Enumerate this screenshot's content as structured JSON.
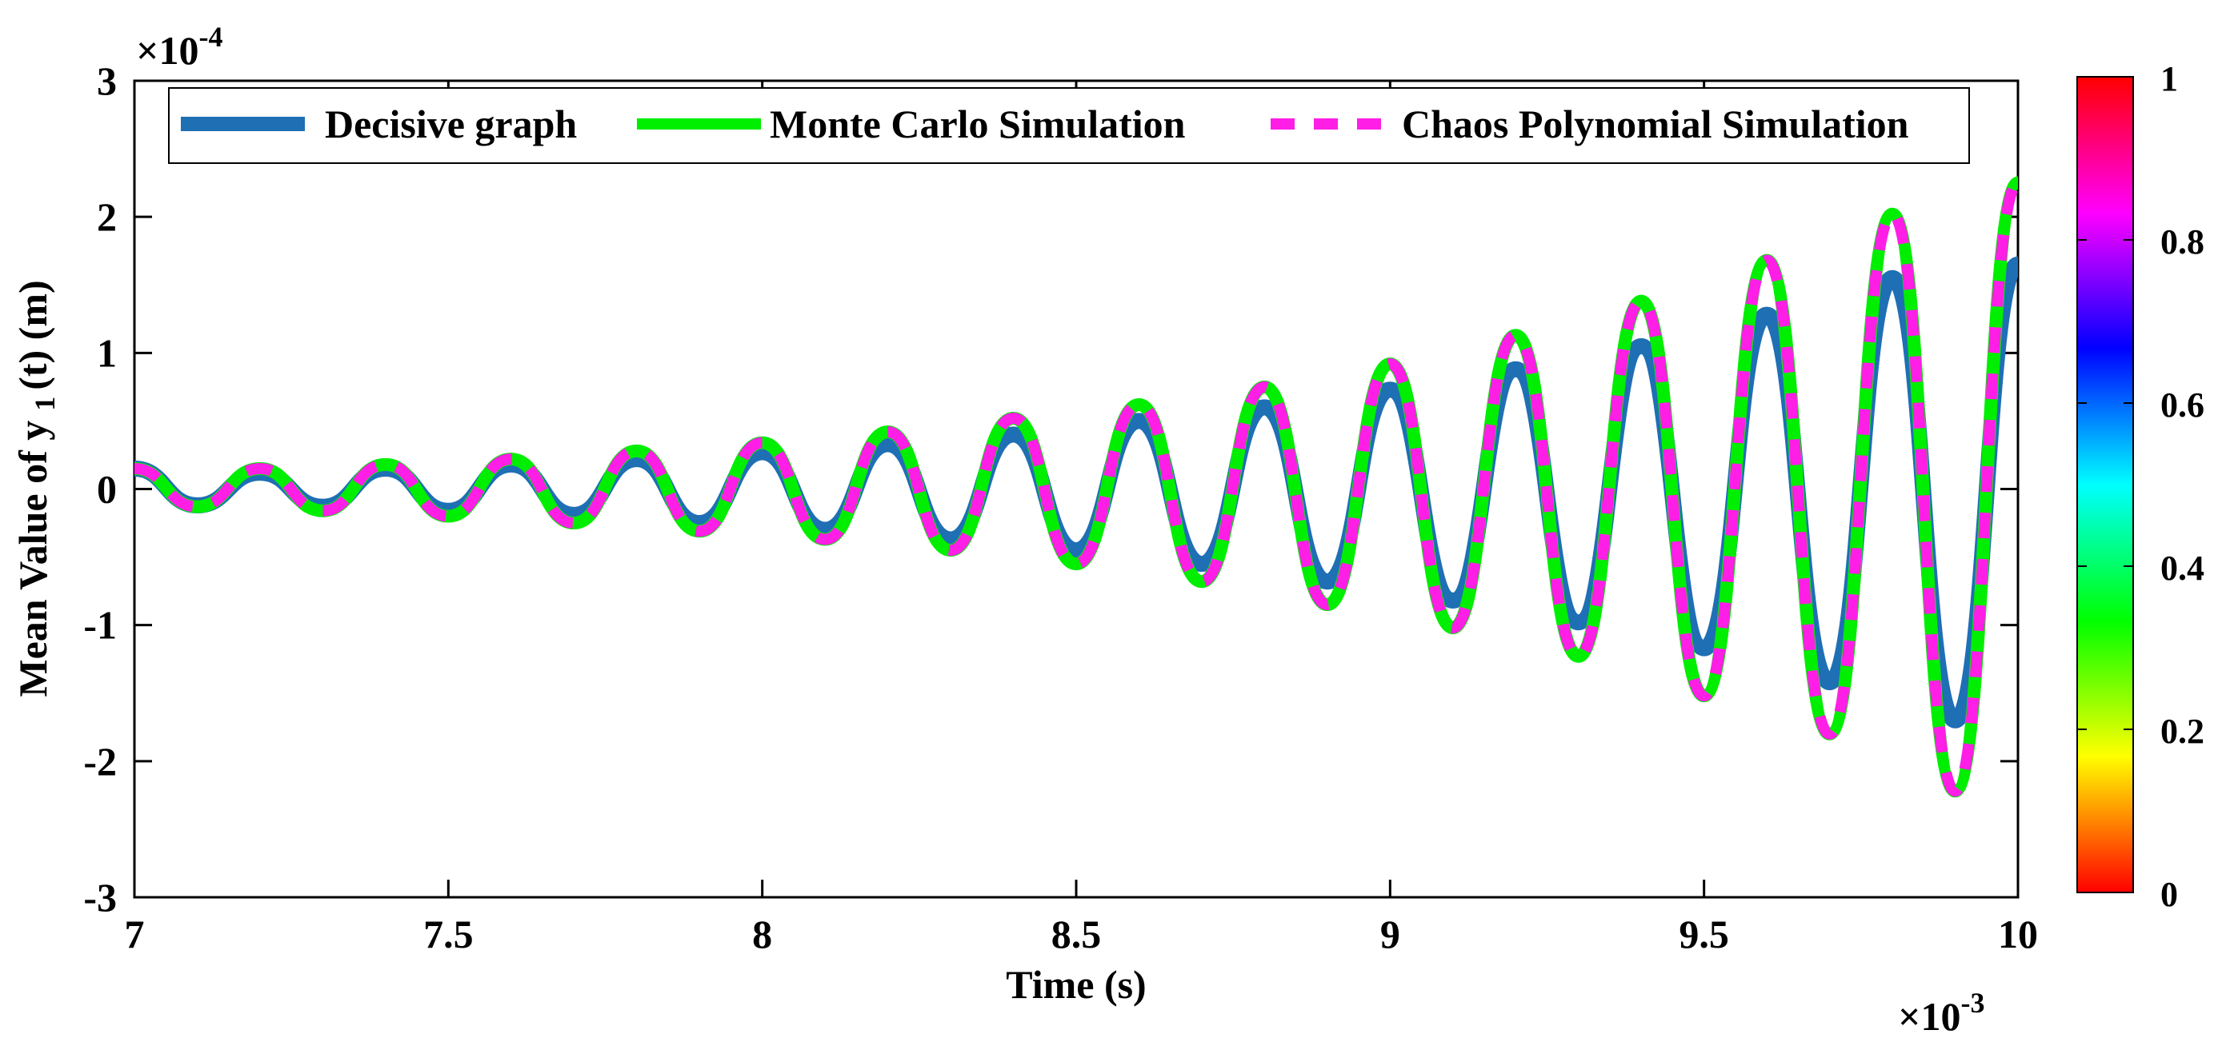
{
  "chart_data": {
    "type": "line",
    "xlabel": "Time (s)",
    "ylabel_prefix": "Mean Value of y",
    "ylabel_sub": "1",
    "ylabel_suffix": "(t) (m)",
    "x_multiplier": "×10",
    "x_exponent": "-3",
    "y_multiplier": "×10",
    "y_exponent": "-4",
    "xlim": [
      7,
      10
    ],
    "ylim": [
      -3,
      3
    ],
    "x_ticks": [
      7,
      7.5,
      8,
      8.5,
      9,
      9.5,
      10
    ],
    "x_tick_labels": [
      "7",
      "7.5",
      "8",
      "8.5",
      "9",
      "9.5",
      "10"
    ],
    "y_ticks": [
      -3,
      -2,
      -1,
      0,
      1,
      2,
      3
    ],
    "y_tick_labels": [
      "-3",
      "-2",
      "-1",
      "0",
      "1",
      "2",
      "3"
    ],
    "grid": false,
    "legend_position": "top",
    "colorbar": {
      "ticks": [
        0,
        0.2,
        0.4,
        0.6,
        0.8,
        1
      ],
      "tick_labels": [
        "0",
        "0.2",
        "0.4",
        "0.6",
        "0.8",
        "1"
      ],
      "colormap": "hsv"
    },
    "series": [
      {
        "name": "Decisive graph",
        "color": "#1f6fb4",
        "style": "solid",
        "x": [
          7.0,
          7.1,
          7.2,
          7.3,
          7.4,
          7.5,
          7.6,
          7.7,
          7.8,
          7.9,
          8.0,
          8.1,
          8.2,
          8.3,
          8.4,
          8.5,
          8.6,
          8.7,
          8.8,
          8.9,
          9.0,
          9.1,
          9.2,
          9.3,
          9.4,
          9.5,
          9.6,
          9.7,
          9.8,
          9.9,
          10.0
        ],
        "y": [
          0.15,
          -0.12,
          0.12,
          -0.13,
          0.15,
          -0.16,
          0.18,
          -0.19,
          0.22,
          -0.25,
          0.27,
          -0.3,
          0.33,
          -0.37,
          0.4,
          -0.45,
          0.5,
          -0.55,
          0.6,
          -0.68,
          0.73,
          -0.82,
          0.88,
          -0.98,
          1.05,
          -1.17,
          1.28,
          -1.42,
          1.55,
          -1.7,
          1.65
        ]
      },
      {
        "name": "Monte Carlo Simulation",
        "color": "#00ee00",
        "style": "solid",
        "x": [
          7.0,
          7.1,
          7.2,
          7.3,
          7.4,
          7.5,
          7.6,
          7.7,
          7.8,
          7.9,
          8.0,
          8.1,
          8.2,
          8.3,
          8.4,
          8.5,
          8.6,
          8.7,
          8.8,
          8.9,
          9.0,
          9.1,
          9.2,
          9.3,
          9.4,
          9.5,
          9.6,
          9.7,
          9.8,
          9.9,
          10.0
        ],
        "y": [
          0.15,
          -0.13,
          0.15,
          -0.16,
          0.18,
          -0.2,
          0.22,
          -0.25,
          0.28,
          -0.31,
          0.34,
          -0.37,
          0.42,
          -0.45,
          0.52,
          -0.55,
          0.62,
          -0.68,
          0.75,
          -0.85,
          0.92,
          -1.02,
          1.13,
          -1.23,
          1.38,
          -1.52,
          1.68,
          -1.8,
          2.02,
          -2.22,
          2.25
        ]
      },
      {
        "name": "Chaos Polynomial Simulation",
        "color": "#ff1ee6",
        "style": "dashed",
        "x": [
          7.0,
          7.1,
          7.2,
          7.3,
          7.4,
          7.5,
          7.6,
          7.7,
          7.8,
          7.9,
          8.0,
          8.1,
          8.2,
          8.3,
          8.4,
          8.5,
          8.6,
          8.7,
          8.8,
          8.9,
          9.0,
          9.1,
          9.2,
          9.3,
          9.4,
          9.5,
          9.6,
          9.7,
          9.8,
          9.9,
          10.0
        ],
        "y": [
          0.15,
          -0.13,
          0.15,
          -0.16,
          0.18,
          -0.2,
          0.22,
          -0.25,
          0.28,
          -0.31,
          0.34,
          -0.37,
          0.42,
          -0.45,
          0.52,
          -0.55,
          0.62,
          -0.68,
          0.75,
          -0.85,
          0.92,
          -1.02,
          1.13,
          -1.23,
          1.38,
          -1.52,
          1.68,
          -1.8,
          2.02,
          -2.22,
          2.25
        ]
      }
    ]
  }
}
